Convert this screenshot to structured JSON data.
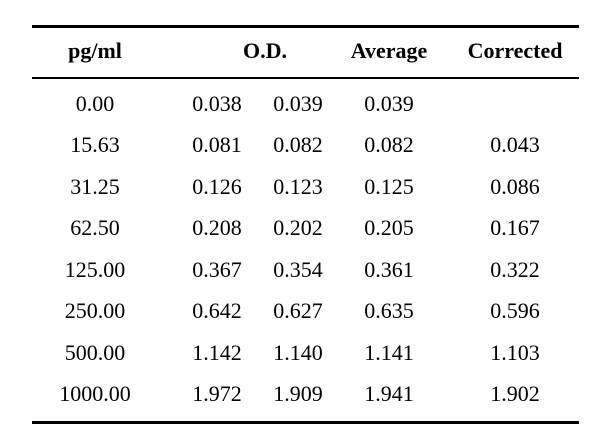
{
  "table": {
    "headers": {
      "pg": "pg/ml",
      "od": "O.D.",
      "average": "Average",
      "corrected": "Corrected"
    },
    "rows": [
      {
        "pg": "0.00",
        "od1": "0.038",
        "od2": "0.039",
        "average": "0.039",
        "corrected": ""
      },
      {
        "pg": "15.63",
        "od1": "0.081",
        "od2": "0.082",
        "average": "0.082",
        "corrected": "0.043"
      },
      {
        "pg": "31.25",
        "od1": "0.126",
        "od2": "0.123",
        "average": "0.125",
        "corrected": "0.086"
      },
      {
        "pg": "62.50",
        "od1": "0.208",
        "od2": "0.202",
        "average": "0.205",
        "corrected": "0.167"
      },
      {
        "pg": "125.00",
        "od1": "0.367",
        "od2": "0.354",
        "average": "0.361",
        "corrected": "0.322"
      },
      {
        "pg": "250.00",
        "od1": "0.642",
        "od2": "0.627",
        "average": "0.635",
        "corrected": "0.596"
      },
      {
        "pg": "500.00",
        "od1": "1.142",
        "od2": "1.140",
        "average": "1.141",
        "corrected": "1.103"
      },
      {
        "pg": "1000.00",
        "od1": "1.972",
        "od2": "1.909",
        "average": "1.941",
        "corrected": "1.902"
      }
    ]
  }
}
